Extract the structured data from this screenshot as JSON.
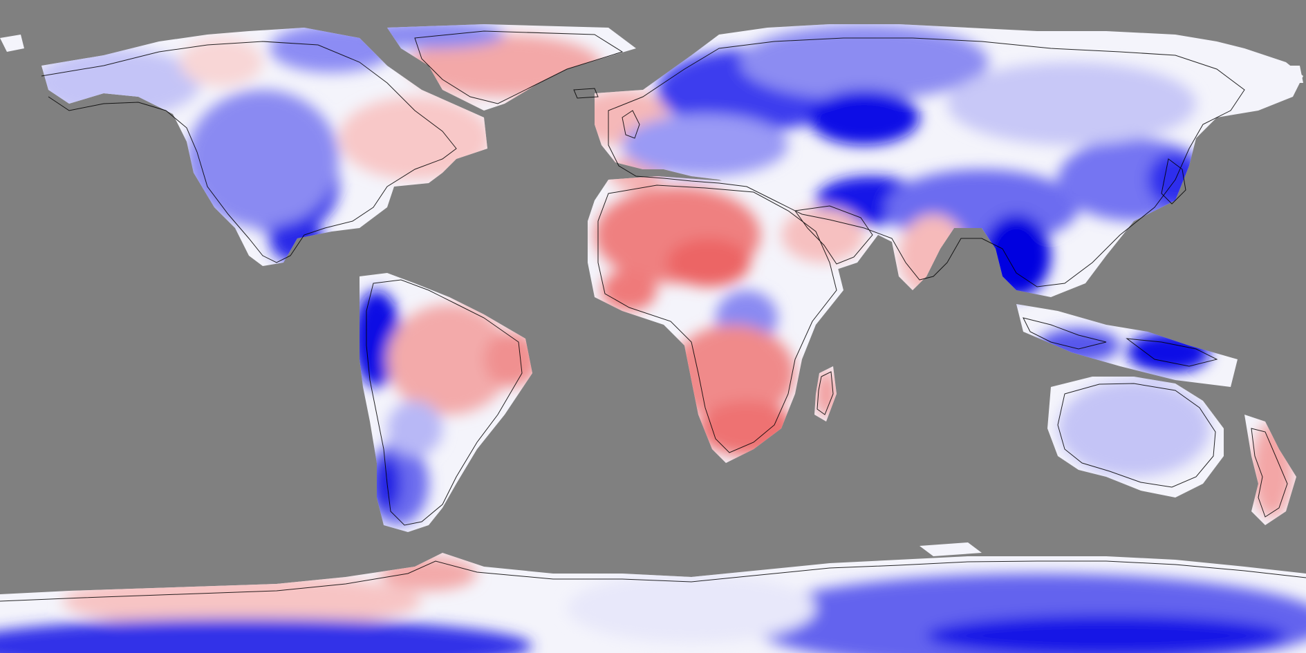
{
  "map": {
    "projection": "equirectangular",
    "extent": {
      "lon": [
        -180,
        180
      ],
      "lat": [
        -90,
        90
      ]
    },
    "colors": {
      "ocean": "#808080",
      "strong_negative": "#0000e0",
      "negative": "#7a7af2",
      "weak_negative": "#dcdcfa",
      "neutral": "#fafafa",
      "weak_positive": "#fadcdc",
      "positive": "#f29a9a",
      "strong_positive": "#ec6f6f",
      "coastline": "#000000"
    },
    "legend": null
  }
}
